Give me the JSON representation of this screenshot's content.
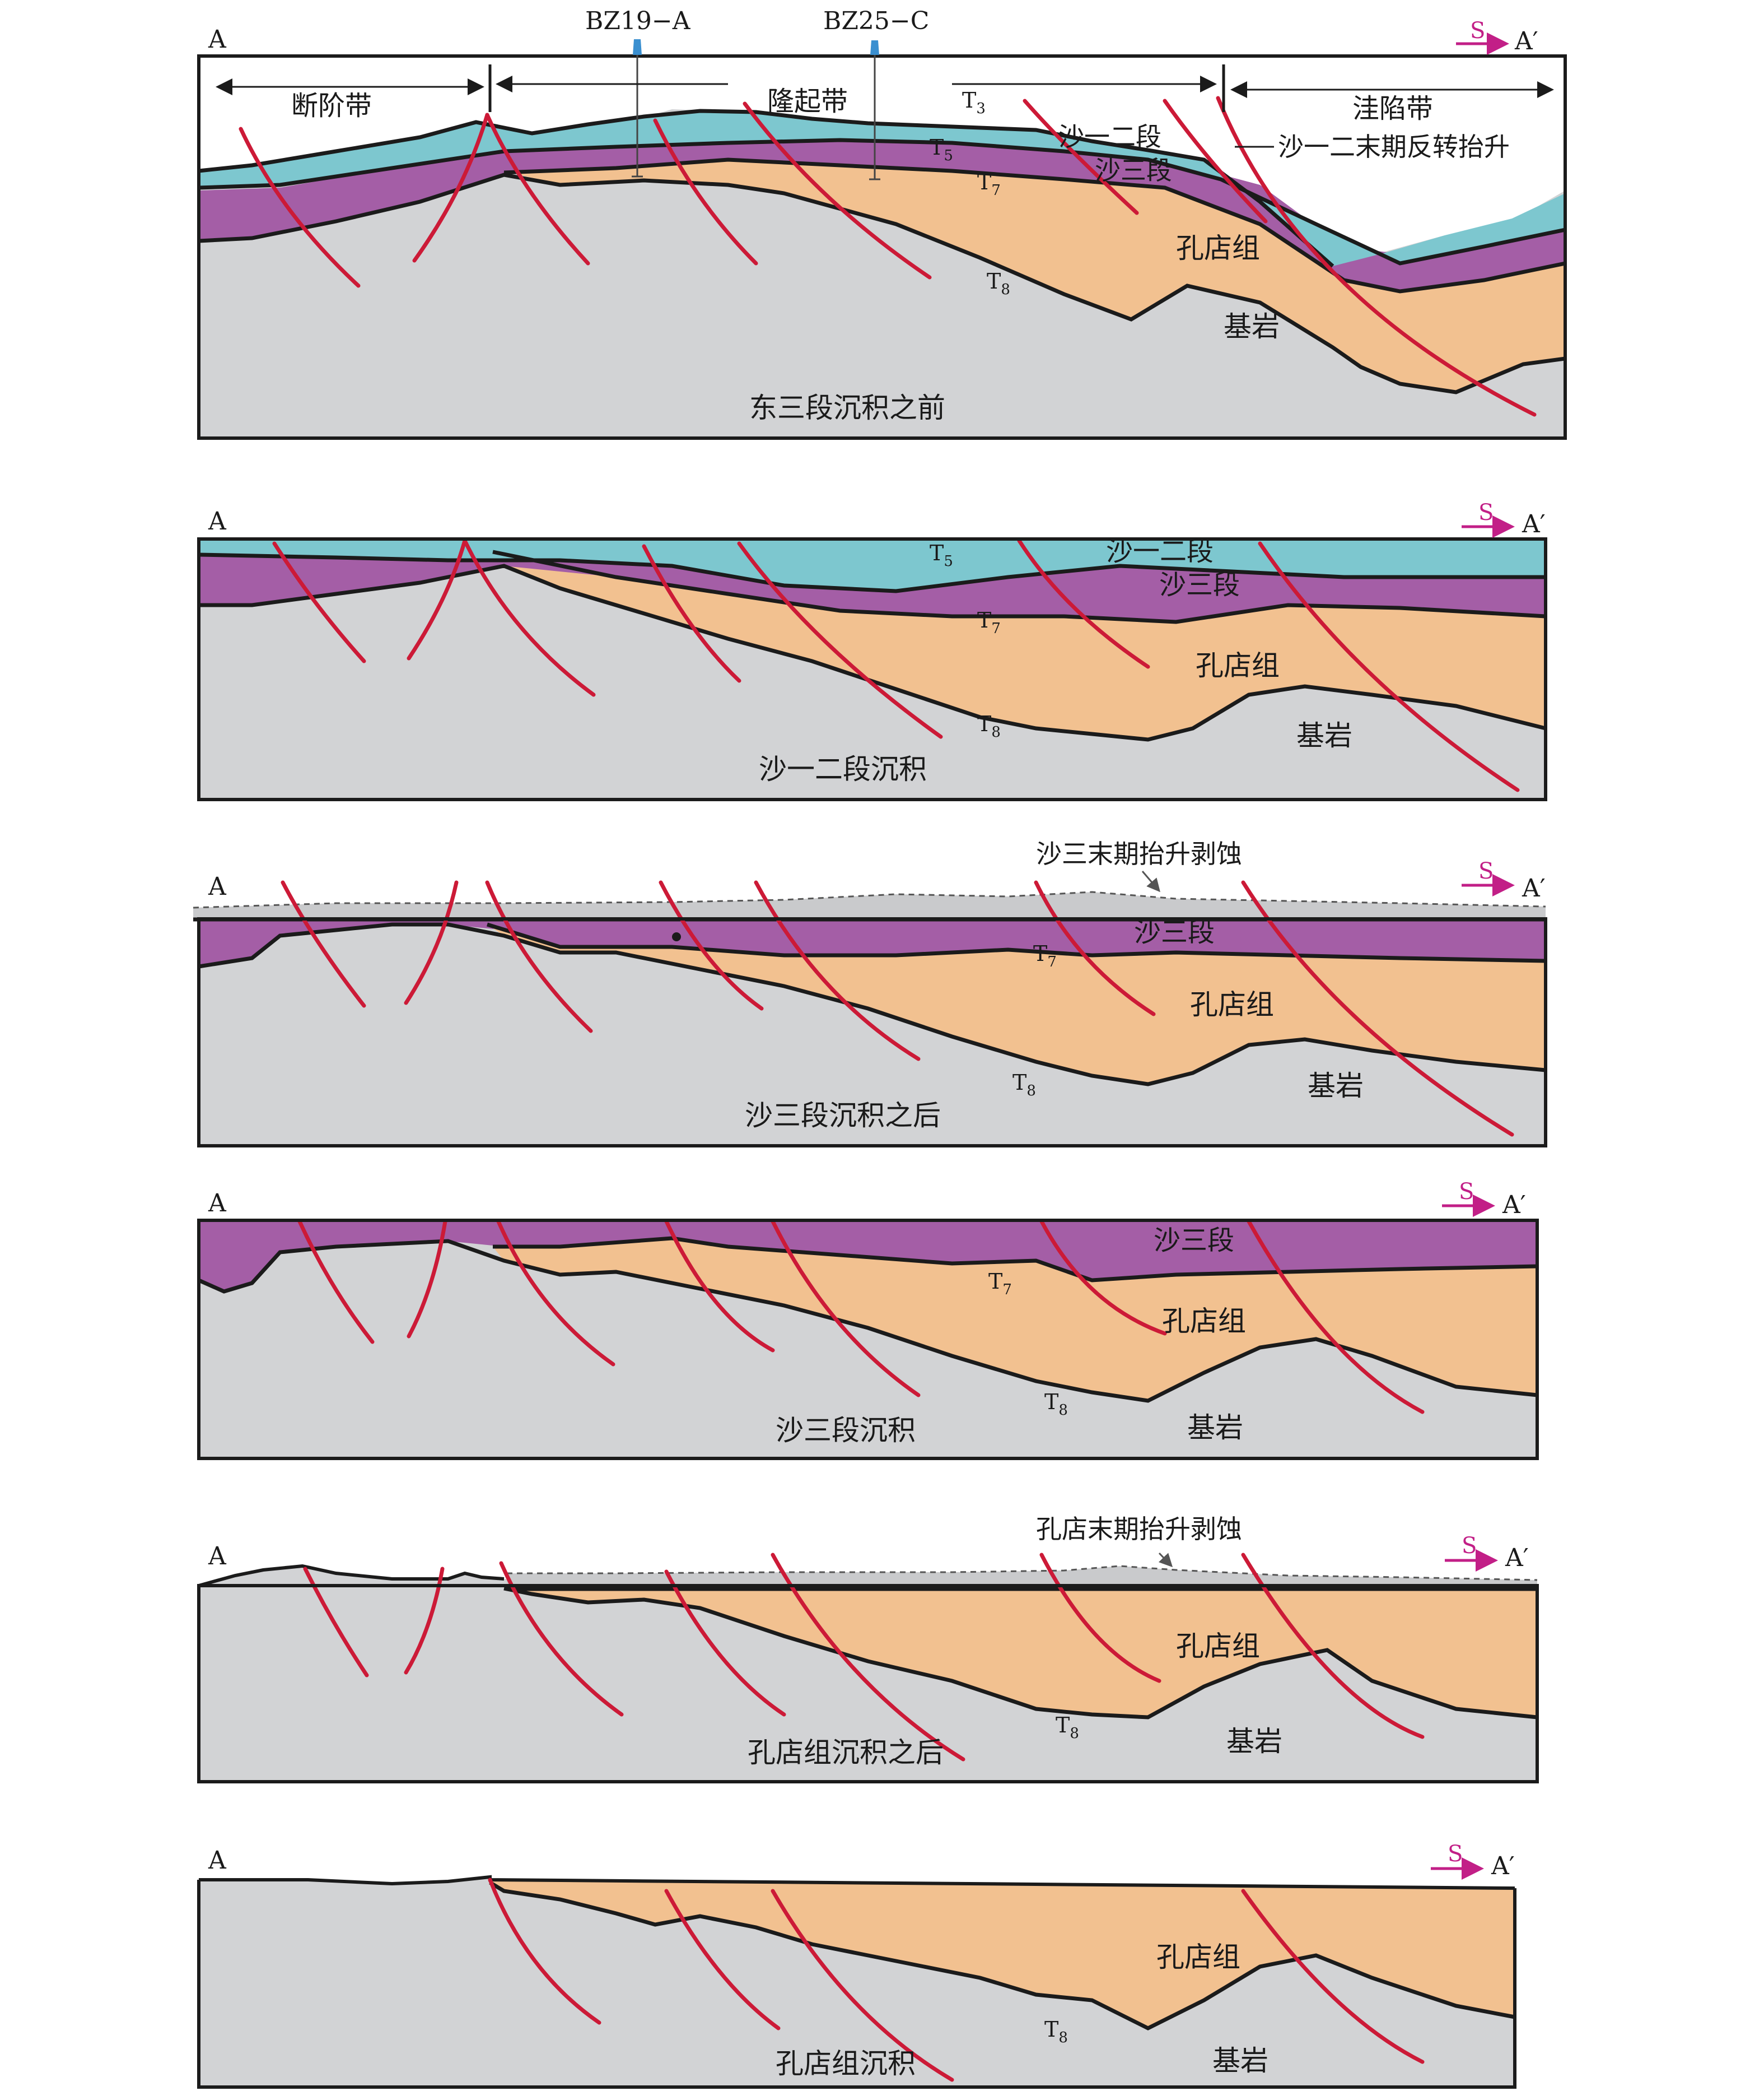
{
  "sections": [
    {
      "caption": "东三段沉积之前",
      "left_label": "A",
      "right_label": "A′",
      "direction_label": "S",
      "wells": [
        "BZ19−A",
        "BZ25−C"
      ],
      "zones": [
        "断阶带",
        "隆起带",
        "洼陷带"
      ],
      "horizons": [
        "T3",
        "T5",
        "T7",
        "T8"
      ],
      "units": [
        "沙一二段",
        "沙三段",
        "孔店组",
        "基岩"
      ],
      "annotation": "沙一二末期反转抬升"
    },
    {
      "caption": "沙一二段沉积",
      "left_label": "A",
      "right_label": "A′",
      "direction_label": "S",
      "horizons": [
        "T5",
        "T7",
        "T8"
      ],
      "units": [
        "沙一二段",
        "沙三段",
        "孔店组",
        "基岩"
      ]
    },
    {
      "caption": "沙三段沉积之后",
      "left_label": "A",
      "right_label": "A′",
      "direction_label": "S",
      "horizons": [
        "T7",
        "T8"
      ],
      "units": [
        "沙三段",
        "孔店组",
        "基岩"
      ],
      "annotation": "沙三末期抬升剥蚀"
    },
    {
      "caption": "沙三段沉积",
      "left_label": "A",
      "right_label": "A′",
      "direction_label": "S",
      "horizons": [
        "T7",
        "T8"
      ],
      "units": [
        "沙三段",
        "孔店组",
        "基岩"
      ]
    },
    {
      "caption": "孔店组沉积之后",
      "left_label": "A",
      "right_label": "A′",
      "direction_label": "S",
      "horizons": [
        "T8"
      ],
      "units": [
        "孔店组",
        "基岩"
      ],
      "annotation": "孔店末期抬升剥蚀"
    },
    {
      "caption": "孔店组沉积",
      "left_label": "A",
      "right_label": "A′",
      "direction_label": "S",
      "horizons": [
        "T8"
      ],
      "units": [
        "孔店组",
        "基岩"
      ]
    }
  ],
  "colors": {
    "basement": "#d2d3d5",
    "kongdian": "#f2c190",
    "sha3": "#a45ea6",
    "sha12": "#7dc7cf",
    "fault": "#cc1a37",
    "direction_arrow": "#c21f87"
  }
}
